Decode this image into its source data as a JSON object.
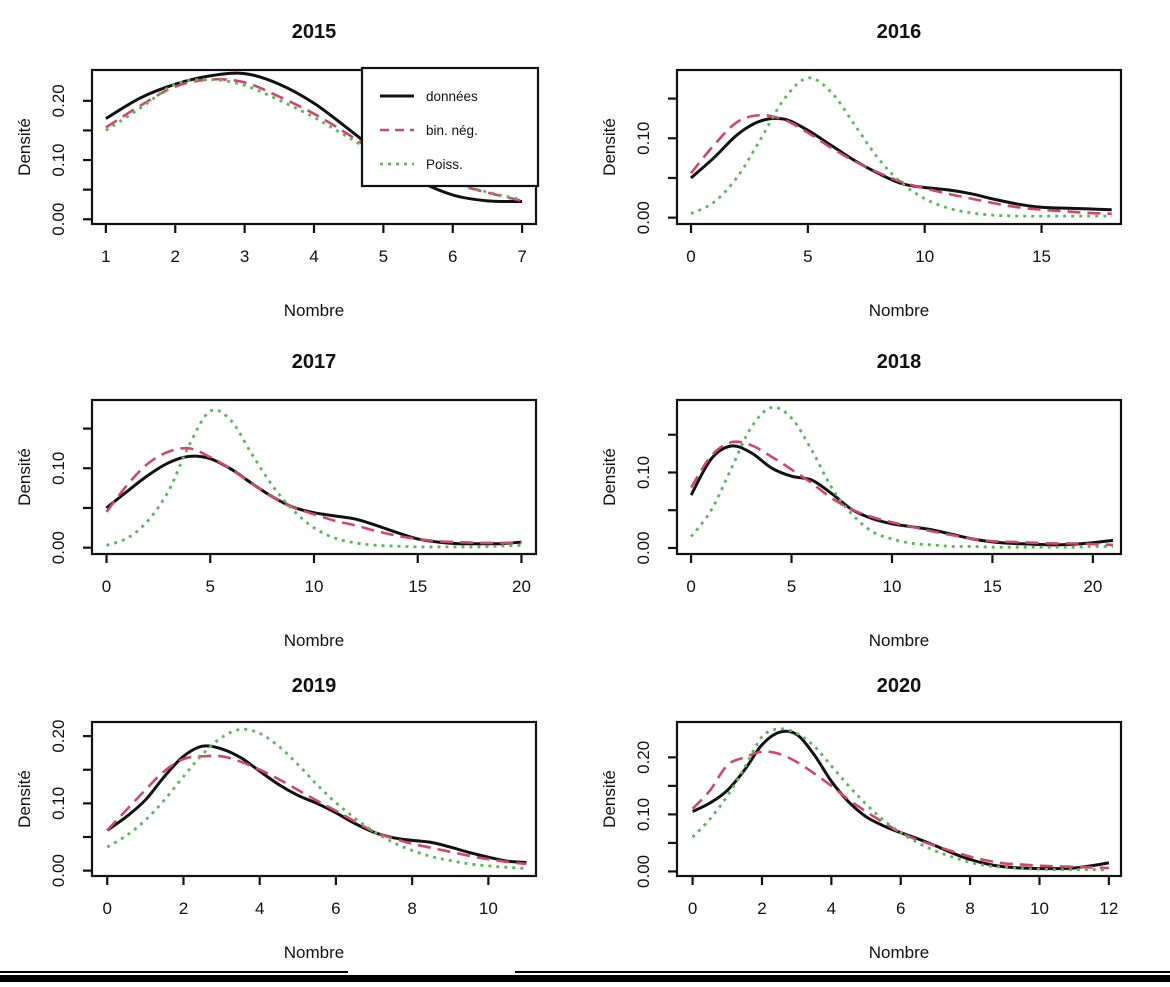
{
  "page": {
    "background": "#ffffff",
    "bottom_bar_color": "#000000"
  },
  "labels": {
    "x_axis": "Nombre",
    "y_axis": "Densité"
  },
  "legend": {
    "entries": [
      "données",
      "bin. nég.",
      "Poiss."
    ],
    "position": "top-right-of-2015-panel"
  },
  "colors": {
    "donnees": "#111111",
    "bin_neg": "#cc4a68",
    "poiss": "#5cb75c"
  },
  "chart_data": [
    {
      "type": "line",
      "title": "2015",
      "xlabel": "Nombre",
      "ylabel": "Densité",
      "xlim": [
        0.8,
        7.2
      ],
      "ylim": [
        -0.008,
        0.252
      ],
      "xticks": [
        1,
        2,
        3,
        4,
        5,
        6,
        7
      ],
      "yticks": [
        0,
        0.05,
        0.1,
        0.15,
        0.2
      ],
      "yticks_labeled": [
        0,
        0.1,
        0.2
      ],
      "legend": true,
      "series": [
        {
          "name": "données",
          "color": "#111111",
          "style": "solid",
          "x": [
            1,
            1.5,
            2,
            2.5,
            3,
            3.5,
            4,
            4.5,
            5,
            5.5,
            6,
            6.5,
            7
          ],
          "y": [
            0.17,
            0.205,
            0.228,
            0.242,
            0.246,
            0.228,
            0.196,
            0.152,
            0.106,
            0.066,
            0.041,
            0.031,
            0.03
          ]
        },
        {
          "name": "bin. nég.",
          "color": "#cc4a68",
          "style": "dashed",
          "x": [
            1,
            1.5,
            2,
            2.5,
            3,
            3.5,
            4,
            4.5,
            5,
            5.5,
            6,
            6.5,
            7
          ],
          "y": [
            0.155,
            0.192,
            0.224,
            0.236,
            0.231,
            0.207,
            0.178,
            0.143,
            0.105,
            0.083,
            0.061,
            0.045,
            0.031
          ]
        },
        {
          "name": "Poiss.",
          "color": "#5cb75c",
          "style": "dotted",
          "x": [
            1,
            1.5,
            2,
            2.5,
            3,
            3.5,
            4,
            4.5,
            5,
            5.5,
            6,
            6.5,
            7
          ],
          "y": [
            0.15,
            0.188,
            0.228,
            0.236,
            0.226,
            0.201,
            0.172,
            0.138,
            0.104,
            0.084,
            0.062,
            0.046,
            0.033
          ]
        }
      ]
    },
    {
      "type": "line",
      "title": "2016",
      "xlabel": "Nombre",
      "ylabel": "Densité",
      "xlim": [
        -0.6,
        18.4
      ],
      "ylim": [
        -0.008,
        0.186
      ],
      "xticks": [
        0,
        5,
        10,
        15
      ],
      "yticks": [
        0,
        0.05,
        0.1,
        0.15
      ],
      "yticks_labeled": [
        0,
        0.1
      ],
      "legend": false,
      "series": [
        {
          "name": "données",
          "color": "#111111",
          "style": "solid",
          "x": [
            0,
            1,
            2,
            3,
            4,
            5,
            6,
            7,
            8,
            9,
            10,
            11,
            12,
            13,
            14,
            15,
            16,
            17,
            18
          ],
          "y": [
            0.05,
            0.076,
            0.105,
            0.122,
            0.124,
            0.11,
            0.091,
            0.072,
            0.056,
            0.043,
            0.038,
            0.035,
            0.03,
            0.023,
            0.017,
            0.013,
            0.012,
            0.011,
            0.01
          ]
        },
        {
          "name": "bin. nég.",
          "color": "#cc4a68",
          "style": "dashed",
          "x": [
            0,
            1,
            2,
            3,
            4,
            5,
            6,
            7,
            8,
            9,
            10,
            11,
            12,
            13,
            14,
            15,
            16,
            17,
            18
          ],
          "y": [
            0.056,
            0.092,
            0.121,
            0.129,
            0.123,
            0.107,
            0.088,
            0.071,
            0.057,
            0.045,
            0.037,
            0.03,
            0.024,
            0.018,
            0.013,
            0.01,
            0.008,
            0.006,
            0.005
          ]
        },
        {
          "name": "Poiss.",
          "color": "#5cb75c",
          "style": "dotted",
          "x": [
            0,
            1,
            2,
            3,
            4,
            5,
            6,
            7,
            8,
            9,
            10,
            11,
            12,
            13,
            14,
            15,
            16,
            17,
            18
          ],
          "y": [
            0.005,
            0.02,
            0.052,
            0.1,
            0.15,
            0.176,
            0.158,
            0.117,
            0.075,
            0.044,
            0.024,
            0.012,
            0.006,
            0.003,
            0.002,
            0.002,
            0.002,
            0.002,
            0.002
          ]
        }
      ]
    },
    {
      "type": "line",
      "title": "2017",
      "xlabel": "Nombre",
      "ylabel": "Densité",
      "xlim": [
        -0.7,
        20.7
      ],
      "ylim": [
        -0.008,
        0.186
      ],
      "xticks": [
        0,
        5,
        10,
        15,
        20
      ],
      "yticks": [
        0,
        0.05,
        0.1,
        0.15
      ],
      "yticks_labeled": [
        0,
        0.1
      ],
      "legend": false,
      "series": [
        {
          "name": "données",
          "color": "#111111",
          "style": "solid",
          "x": [
            0,
            1,
            2,
            3,
            4,
            5,
            6,
            7,
            8,
            9,
            10,
            11,
            12,
            13,
            14,
            15,
            16,
            17,
            18,
            19,
            20
          ],
          "y": [
            0.05,
            0.071,
            0.091,
            0.107,
            0.115,
            0.112,
            0.099,
            0.081,
            0.064,
            0.051,
            0.044,
            0.04,
            0.036,
            0.028,
            0.019,
            0.011,
            0.007,
            0.005,
            0.005,
            0.005,
            0.007
          ]
        },
        {
          "name": "bin. nég.",
          "color": "#cc4a68",
          "style": "dashed",
          "x": [
            0,
            1,
            2,
            3,
            4,
            5,
            6,
            7,
            8,
            9,
            10,
            11,
            12,
            13,
            14,
            15,
            16,
            17,
            18,
            19,
            20
          ],
          "y": [
            0.045,
            0.079,
            0.106,
            0.121,
            0.125,
            0.114,
            0.099,
            0.081,
            0.064,
            0.051,
            0.042,
            0.034,
            0.028,
            0.021,
            0.015,
            0.011,
            0.008,
            0.007,
            0.006,
            0.006,
            0.006
          ]
        },
        {
          "name": "Poiss.",
          "color": "#5cb75c",
          "style": "dotted",
          "x": [
            0,
            1,
            2,
            3,
            4,
            5,
            6,
            7,
            8,
            9,
            10,
            11,
            12,
            13,
            14,
            15,
            16,
            17,
            18,
            19,
            20
          ],
          "y": [
            0.003,
            0.012,
            0.034,
            0.072,
            0.13,
            0.172,
            0.16,
            0.118,
            0.078,
            0.047,
            0.025,
            0.012,
            0.006,
            0.003,
            0.002,
            0.001,
            0.001,
            0.001,
            0.001,
            0.002,
            0.003
          ]
        }
      ]
    },
    {
      "type": "line",
      "title": "2018",
      "xlabel": "Nombre",
      "ylabel": "Densité",
      "xlim": [
        -0.7,
        21.4
      ],
      "ylim": [
        -0.008,
        0.196
      ],
      "xticks": [
        0,
        5,
        10,
        15,
        20
      ],
      "yticks": [
        0,
        0.05,
        0.1,
        0.15
      ],
      "yticks_labeled": [
        0,
        0.1
      ],
      "legend": false,
      "series": [
        {
          "name": "données",
          "color": "#111111",
          "style": "solid",
          "x": [
            0,
            1,
            2,
            3,
            4,
            5,
            6,
            7,
            8,
            9,
            10,
            11,
            12,
            13,
            14,
            15,
            16,
            17,
            18,
            19,
            20,
            21
          ],
          "y": [
            0.07,
            0.118,
            0.135,
            0.126,
            0.106,
            0.095,
            0.09,
            0.072,
            0.051,
            0.039,
            0.032,
            0.028,
            0.024,
            0.018,
            0.012,
            0.008,
            0.006,
            0.005,
            0.004,
            0.005,
            0.007,
            0.01
          ]
        },
        {
          "name": "bin. nég.",
          "color": "#cc4a68",
          "style": "dashed",
          "x": [
            0,
            1,
            2,
            3,
            4,
            5,
            6,
            7,
            8,
            9,
            10,
            11,
            12,
            13,
            14,
            15,
            16,
            17,
            18,
            19,
            20,
            21
          ],
          "y": [
            0.08,
            0.122,
            0.14,
            0.136,
            0.121,
            0.104,
            0.086,
            0.066,
            0.051,
            0.041,
            0.034,
            0.028,
            0.022,
            0.017,
            0.012,
            0.009,
            0.008,
            0.007,
            0.006,
            0.006,
            0.005,
            0.004
          ]
        },
        {
          "name": "Poiss.",
          "color": "#5cb75c",
          "style": "dotted",
          "x": [
            0,
            1,
            2,
            3,
            4,
            5,
            6,
            7,
            8,
            9,
            10,
            11,
            12,
            13,
            14,
            15,
            16,
            17,
            18,
            19,
            20,
            21
          ],
          "y": [
            0.015,
            0.05,
            0.105,
            0.16,
            0.186,
            0.172,
            0.13,
            0.08,
            0.045,
            0.022,
            0.012,
            0.006,
            0.004,
            0.002,
            0.002,
            0.001,
            0.001,
            0.001,
            0.001,
            0.001,
            0.002,
            0.002
          ]
        }
      ]
    },
    {
      "type": "line",
      "title": "2019",
      "xlabel": "Nombre",
      "ylabel": "Densité",
      "xlim": [
        -0.4,
        11.25
      ],
      "ylim": [
        -0.008,
        0.221
      ],
      "xticks": [
        0,
        2,
        4,
        6,
        8,
        10
      ],
      "yticks": [
        0,
        0.05,
        0.1,
        0.15,
        0.2
      ],
      "yticks_labeled": [
        0,
        0.1,
        0.2
      ],
      "legend": false,
      "series": [
        {
          "name": "données",
          "color": "#111111",
          "style": "solid",
          "x": [
            0,
            0.5,
            1,
            1.5,
            2,
            2.5,
            3,
            3.5,
            4,
            4.5,
            5,
            5.5,
            6,
            6.5,
            7,
            7.5,
            8,
            8.5,
            9,
            9.5,
            10,
            10.5,
            11
          ],
          "y": [
            0.06,
            0.08,
            0.105,
            0.14,
            0.17,
            0.185,
            0.181,
            0.168,
            0.148,
            0.128,
            0.112,
            0.1,
            0.086,
            0.07,
            0.057,
            0.049,
            0.045,
            0.042,
            0.035,
            0.027,
            0.02,
            0.014,
            0.012
          ]
        },
        {
          "name": "bin. nég.",
          "color": "#cc4a68",
          "style": "dashed",
          "x": [
            0,
            0.5,
            1,
            1.5,
            2,
            2.5,
            3,
            3.5,
            4,
            4.5,
            5,
            5.5,
            6,
            6.5,
            7,
            7.5,
            8,
            8.5,
            9,
            9.5,
            10,
            10.5,
            11
          ],
          "y": [
            0.06,
            0.09,
            0.12,
            0.148,
            0.166,
            0.17,
            0.17,
            0.162,
            0.15,
            0.136,
            0.12,
            0.104,
            0.089,
            0.073,
            0.058,
            0.048,
            0.04,
            0.034,
            0.028,
            0.022,
            0.017,
            0.013,
            0.01
          ]
        },
        {
          "name": "Poiss.",
          "color": "#5cb75c",
          "style": "dotted",
          "x": [
            0,
            0.5,
            1,
            1.5,
            2,
            2.5,
            3,
            3.5,
            4,
            4.5,
            5,
            5.5,
            6,
            6.5,
            7,
            7.5,
            8,
            8.5,
            9,
            9.5,
            10,
            10.5,
            11
          ],
          "y": [
            0.035,
            0.052,
            0.075,
            0.105,
            0.14,
            0.173,
            0.198,
            0.21,
            0.204,
            0.185,
            0.158,
            0.128,
            0.101,
            0.078,
            0.058,
            0.042,
            0.03,
            0.021,
            0.015,
            0.01,
            0.007,
            0.005,
            0.003
          ]
        }
      ]
    },
    {
      "type": "line",
      "title": "2020",
      "xlabel": "Nombre",
      "ylabel": "Densité",
      "xlim": [
        -0.45,
        12.35
      ],
      "ylim": [
        -0.008,
        0.262
      ],
      "xticks": [
        0,
        2,
        4,
        6,
        8,
        10,
        12
      ],
      "yticks": [
        0,
        0.05,
        0.1,
        0.15,
        0.2
      ],
      "yticks_labeled": [
        0,
        0.1,
        0.2
      ],
      "legend": false,
      "series": [
        {
          "name": "données",
          "color": "#111111",
          "style": "solid",
          "x": [
            0,
            0.5,
            1,
            1.5,
            2,
            2.5,
            3,
            3.5,
            4,
            4.5,
            5,
            5.5,
            6,
            6.5,
            7,
            7.5,
            8,
            8.5,
            9,
            9.5,
            10,
            10.5,
            11,
            11.5,
            12
          ],
          "y": [
            0.105,
            0.12,
            0.142,
            0.178,
            0.222,
            0.244,
            0.24,
            0.205,
            0.158,
            0.122,
            0.096,
            0.08,
            0.068,
            0.057,
            0.045,
            0.032,
            0.021,
            0.013,
            0.008,
            0.006,
            0.005,
            0.005,
            0.006,
            0.01,
            0.015
          ]
        },
        {
          "name": "bin. nég.",
          "color": "#cc4a68",
          "style": "dashed",
          "x": [
            0,
            0.5,
            1,
            1.5,
            2,
            2.5,
            3,
            3.5,
            4,
            4.5,
            5,
            5.5,
            6,
            6.5,
            7,
            7.5,
            8,
            8.5,
            9,
            9.5,
            10,
            10.5,
            11,
            11.5,
            12
          ],
          "y": [
            0.11,
            0.142,
            0.186,
            0.2,
            0.21,
            0.206,
            0.192,
            0.172,
            0.15,
            0.126,
            0.105,
            0.086,
            0.068,
            0.055,
            0.045,
            0.035,
            0.026,
            0.019,
            0.014,
            0.012,
            0.01,
            0.009,
            0.008,
            0.007,
            0.006
          ]
        },
        {
          "name": "Poiss.",
          "color": "#5cb75c",
          "style": "dotted",
          "x": [
            0,
            0.5,
            1,
            1.5,
            2,
            2.5,
            3,
            3.5,
            4,
            4.5,
            5,
            5.5,
            6,
            6.5,
            7,
            7.5,
            8,
            8.5,
            9,
            9.5,
            10,
            10.5,
            11,
            11.5,
            12
          ],
          "y": [
            0.06,
            0.092,
            0.132,
            0.182,
            0.236,
            0.25,
            0.242,
            0.22,
            0.185,
            0.15,
            0.118,
            0.09,
            0.068,
            0.05,
            0.036,
            0.025,
            0.016,
            0.01,
            0.007,
            0.005,
            0.004,
            0.003,
            0.003,
            0.003,
            0.003
          ]
        }
      ]
    }
  ]
}
